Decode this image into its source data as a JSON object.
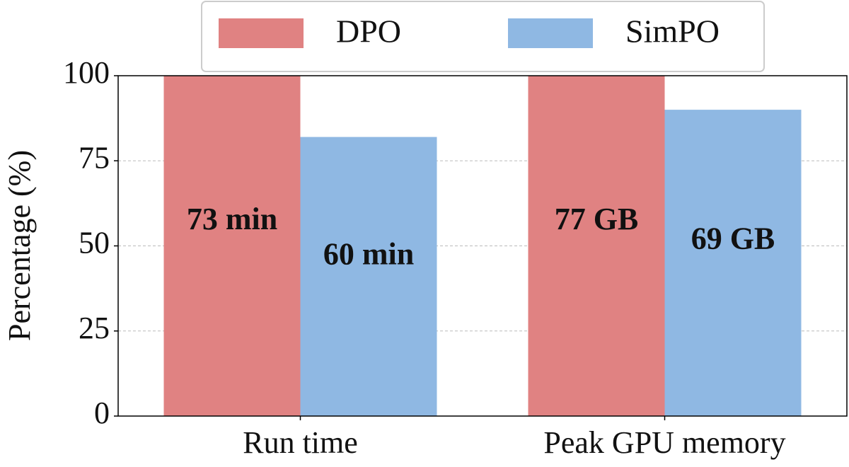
{
  "chart_data": {
    "type": "bar",
    "y_label": "Percentage (%)",
    "categories": [
      "Run time",
      "Peak GPU memory"
    ],
    "series": [
      {
        "name": "DPO",
        "color": "#e08282",
        "values": [
          100,
          100
        ],
        "annotations": [
          "73 min",
          "77 GB"
        ]
      },
      {
        "name": "SimPO",
        "color": "#8fb8e3",
        "values": [
          82,
          90
        ],
        "annotations": [
          "60 min",
          "69 GB"
        ]
      }
    ],
    "ylim": [
      0,
      100
    ],
    "yticks": [
      0,
      25,
      50,
      75,
      100
    ],
    "grid": true,
    "legend": "top"
  }
}
